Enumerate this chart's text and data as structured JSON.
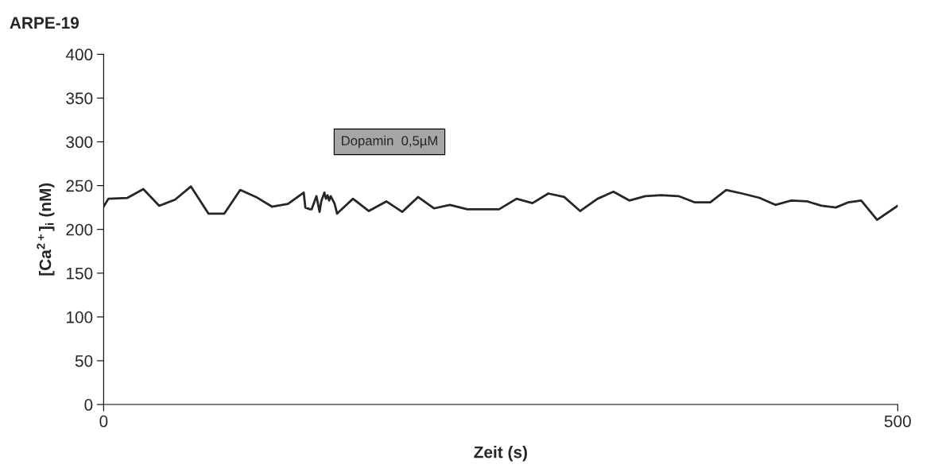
{
  "chart_data": {
    "type": "line",
    "title": "ARPE-19",
    "xlabel": "Zeit (s)",
    "ylabel": "[Ca$^{2+}$]$_{i}$ (nM)",
    "annotations": [
      "Dopamin  0,5µM"
    ],
    "series": [
      {
        "color": "#262626",
        "x": [
          0,
          3,
          15,
          25,
          35,
          45,
          55,
          66,
          76,
          86,
          96,
          106,
          116,
          126,
          127,
          130,
          131,
          133,
          134,
          135,
          136,
          137,
          139,
          140,
          141,
          142,
          143,
          145,
          145.5,
          147,
          157,
          167,
          178,
          188,
          198,
          208,
          218,
          229,
          249,
          260,
          270,
          280,
          290,
          300,
          311,
          321,
          331,
          341,
          351,
          362,
          372,
          382,
          392,
          402,
          413,
          423,
          433,
          443,
          452,
          461,
          469,
          477,
          487,
          500
        ],
        "values": [
          226,
          235,
          236,
          246,
          227,
          234,
          249,
          218,
          218,
          245,
          237,
          226,
          229,
          242,
          225,
          223,
          223,
          233,
          238,
          229,
          220,
          232,
          242,
          235,
          239,
          233,
          238,
          231,
          229,
          218,
          235,
          221,
          232,
          220,
          237,
          224,
          228,
          223,
          223,
          235,
          230,
          241,
          237,
          221,
          235,
          243,
          233,
          238,
          239,
          238,
          231,
          231,
          245,
          241,
          236,
          228,
          233,
          232,
          227,
          225,
          231,
          233,
          211,
          227
        ]
      }
    ],
    "xlim": [
      0,
      500
    ],
    "xticks": [
      0,
      500
    ],
    "ylim": [
      0,
      400
    ],
    "yticks": [
      0,
      50,
      100,
      150,
      200,
      250,
      300,
      350,
      400
    ],
    "grid": false,
    "legend": false,
    "marker": "none",
    "line_style": "solid"
  }
}
